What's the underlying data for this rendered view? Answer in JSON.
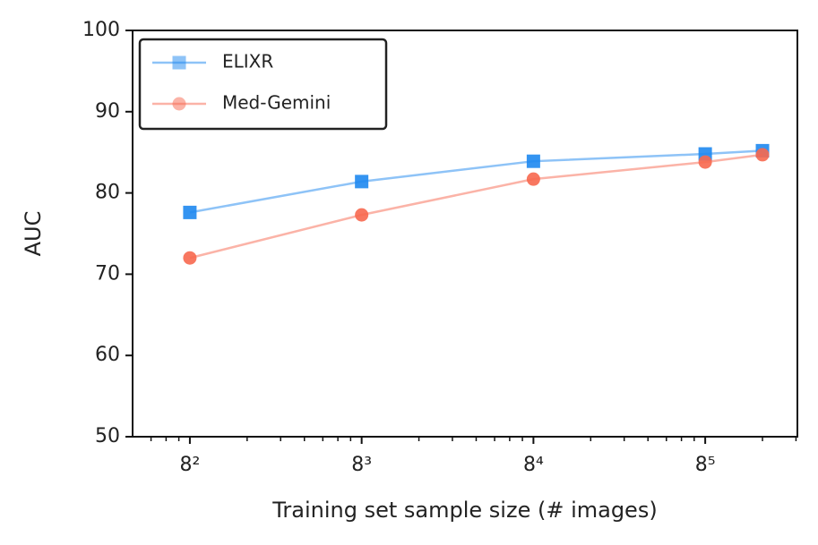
{
  "chart_data": {
    "type": "line",
    "xlabel": "Training set sample size (# images)",
    "ylabel": "AUC",
    "x": [
      64,
      512,
      4096,
      32768,
      65536
    ],
    "series": [
      {
        "name": "ELIXR",
        "color": "#1e88f0",
        "marker": "square",
        "values": [
          77.6,
          81.4,
          83.9,
          84.8,
          85.2
        ]
      },
      {
        "name": "Med-Gemini",
        "color": "#f7684f",
        "marker": "circle",
        "values": [
          72.0,
          77.3,
          81.7,
          83.8,
          84.7
        ]
      }
    ],
    "xscale": "log",
    "xbase": 8,
    "xlim": [
      32,
      100000
    ],
    "xticks": [
      {
        "value": 64,
        "label": "8²"
      },
      {
        "value": 512,
        "label": "8³"
      },
      {
        "value": 4096,
        "label": "8⁴"
      },
      {
        "value": 32768,
        "label": "8⁵"
      }
    ],
    "xminorticks": [
      40,
      48,
      56,
      128,
      192,
      256,
      320,
      384,
      448,
      1024,
      1536,
      2048,
      2560,
      3072,
      3584,
      8192,
      12288,
      16384,
      20480,
      24576,
      28672,
      65536,
      98304
    ],
    "ylim": [
      50,
      100
    ],
    "yticks": [
      50,
      60,
      70,
      80,
      90,
      100
    ],
    "grid": false,
    "legend": "upper left"
  }
}
